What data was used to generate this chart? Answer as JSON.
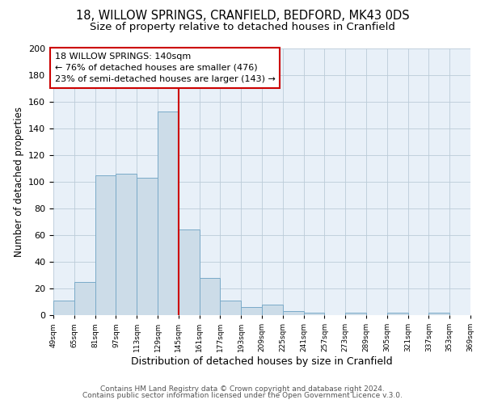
{
  "title1": "18, WILLOW SPRINGS, CRANFIELD, BEDFORD, MK43 0DS",
  "title2": "Size of property relative to detached houses in Cranfield",
  "xlabel": "Distribution of detached houses by size in Cranfield",
  "ylabel": "Number of detached properties",
  "bin_labels": [
    "49sqm",
    "65sqm",
    "81sqm",
    "97sqm",
    "113sqm",
    "129sqm",
    "145sqm",
    "161sqm",
    "177sqm",
    "193sqm",
    "209sqm",
    "225sqm",
    "241sqm",
    "257sqm",
    "273sqm",
    "289sqm",
    "305sqm",
    "321sqm",
    "337sqm",
    "353sqm",
    "369sqm"
  ],
  "bar_heights": [
    11,
    25,
    105,
    106,
    103,
    153,
    64,
    28,
    11,
    6,
    8,
    3,
    2,
    0,
    2,
    0,
    2,
    0,
    2,
    0,
    0
  ],
  "bin_edges": [
    49,
    65,
    81,
    97,
    113,
    129,
    145,
    161,
    177,
    193,
    209,
    225,
    241,
    257,
    273,
    289,
    305,
    321,
    337,
    353,
    369
  ],
  "bar_color": "#ccdce8",
  "bar_edge_color": "#7aaac8",
  "vline_x": 145,
  "vline_color": "#cc0000",
  "annotation_line1": "18 WILLOW SPRINGS: 140sqm",
  "annotation_line2": "← 76% of detached houses are smaller (476)",
  "annotation_line3": "23% of semi-detached houses are larger (143) →",
  "annotation_box_edge": "#cc0000",
  "ylim": [
    0,
    200
  ],
  "yticks": [
    0,
    20,
    40,
    60,
    80,
    100,
    120,
    140,
    160,
    180,
    200
  ],
  "footer1": "Contains HM Land Registry data © Crown copyright and database right 2024.",
  "footer2": "Contains public sector information licensed under the Open Government Licence v.3.0.",
  "title1_fontsize": 10.5,
  "title2_fontsize": 9.5,
  "xlabel_fontsize": 9,
  "ylabel_fontsize": 8.5,
  "annotation_fontsize": 8,
  "footer_fontsize": 6.5,
  "bg_color": "#e8f0f8"
}
